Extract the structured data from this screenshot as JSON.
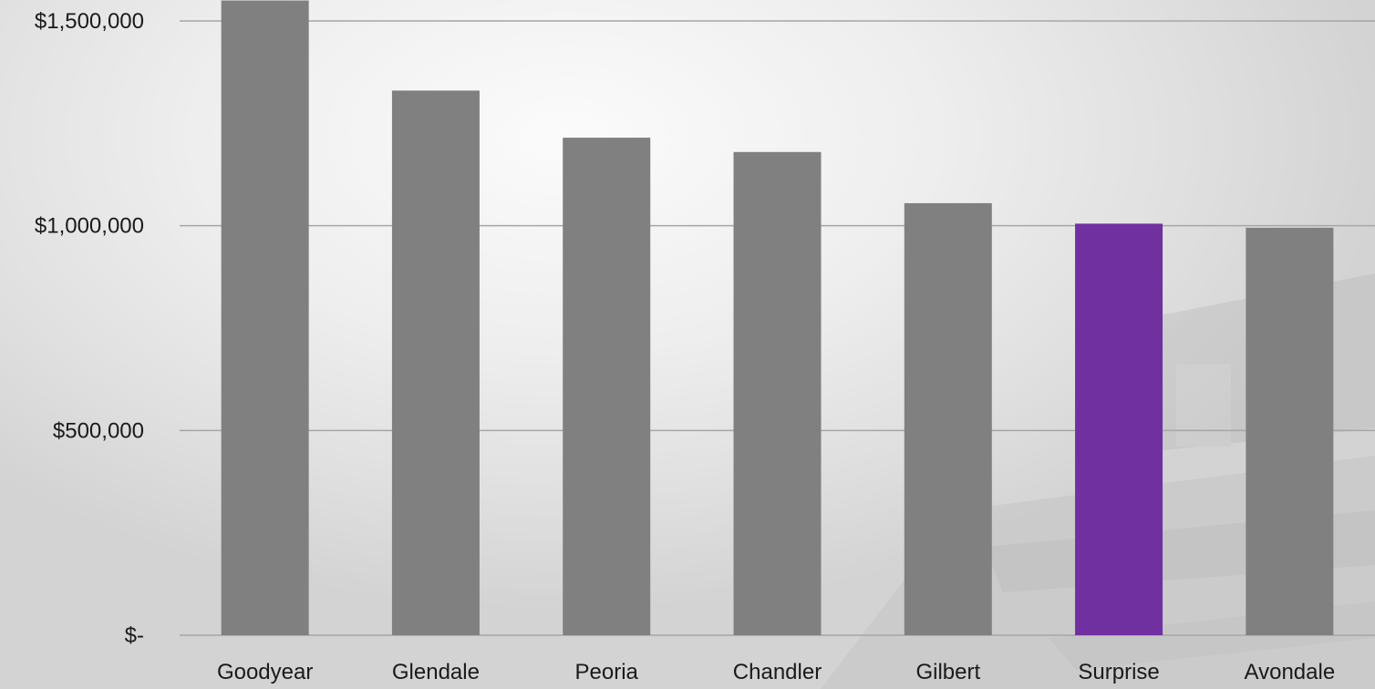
{
  "chart_data": {
    "type": "bar",
    "title": "",
    "xlabel": "",
    "ylabel": "",
    "categories": [
      "Goodyear",
      "Glendale",
      "Peoria",
      "Chandler",
      "Gilbert",
      "Surprise",
      "Avondale"
    ],
    "values": [
      1550000,
      1330000,
      1215000,
      1180000,
      1055000,
      1005000,
      995000
    ],
    "ylim": [
      0,
      1500000
    ],
    "yticks": [
      {
        "value": 0,
        "label": "$-"
      },
      {
        "value": 500000,
        "label": "$500,000"
      },
      {
        "value": 1000000,
        "label": "$1,000,000"
      },
      {
        "value": 1500000,
        "label": "$1,500,000"
      }
    ],
    "grid": true,
    "legend": "none",
    "colors": {
      "bar": "#808080",
      "highlight": "#7030a0",
      "gridline": "#a6a6a6"
    },
    "highlight_category": "Surprise"
  }
}
